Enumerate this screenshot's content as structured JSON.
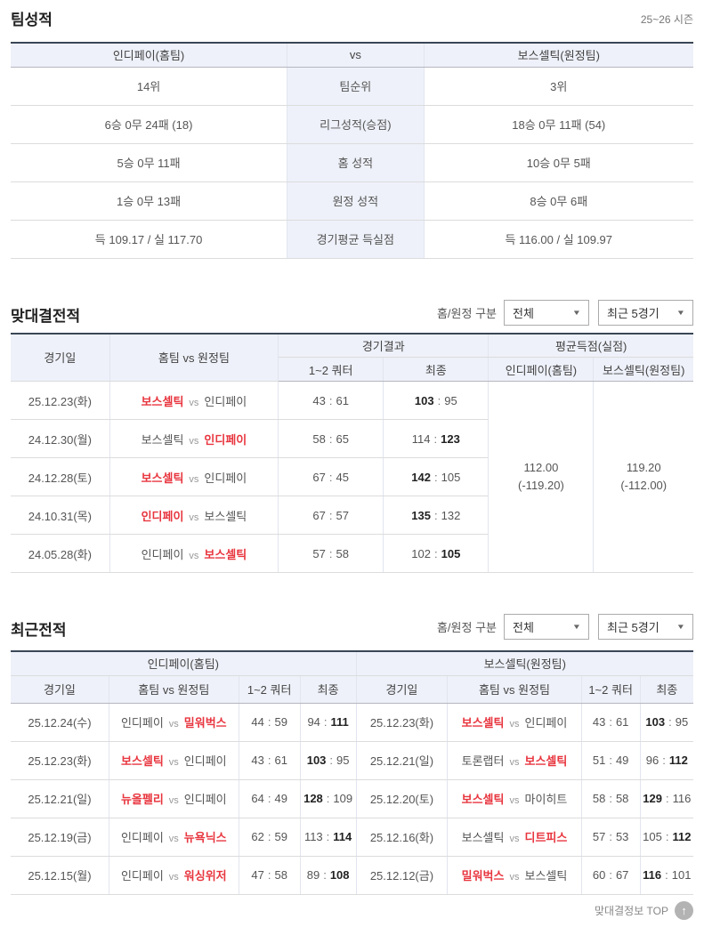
{
  "shared": {
    "vs_label": "vs",
    "score_sep": ":",
    "filter_label": "홈/원정 구분",
    "venue_filter_value": "전체",
    "recent_filter_value": "최근 5경기",
    "accent_red": "#e8363f",
    "header_bg": "#eef1f9",
    "table_top_border": "#3a4656"
  },
  "team_stats": {
    "title": "팀성적",
    "season_label": "25~26 시즌",
    "header": {
      "home": "인디페이(홈팀)",
      "vs": "vs",
      "away": "보스셀틱(원정팀)"
    },
    "rows": [
      {
        "home": "14위",
        "label": "팀순위",
        "away": "3위"
      },
      {
        "home": "6승 0무 24패 (18)",
        "label": "리그성적(승점)",
        "away": "18승 0무 11패 (54)"
      },
      {
        "home": "5승 0무 11패",
        "label": "홈 성적",
        "away": "10승 0무 5패"
      },
      {
        "home": "1승 0무 13패",
        "label": "원정 성적",
        "away": "8승 0무 6패"
      },
      {
        "home": "득 109.17 / 실 117.70",
        "label": "경기평균 득실점",
        "away": "득 116.00 / 실 109.97"
      }
    ]
  },
  "head_to_head": {
    "title": "맞대결전적",
    "columns": {
      "date": "경기일",
      "match": "홈팀 vs 원정팀",
      "result_group": "경기결과",
      "quarter": "1~2 쿼터",
      "final": "최종",
      "avg_group": "평균득점(실점)",
      "avg_home": "인디페이(홈팀)",
      "avg_away": "보스셀틱(원정팀)"
    },
    "rows": [
      {
        "date": "25.12.23(화)",
        "home": "보스셀틱",
        "away": "인디페이",
        "win": "home",
        "q": [
          "43",
          "61"
        ],
        "f": [
          "103",
          "95"
        ]
      },
      {
        "date": "24.12.30(월)",
        "home": "보스셀틱",
        "away": "인디페이",
        "win": "away",
        "q": [
          "58",
          "65"
        ],
        "f": [
          "114",
          "123"
        ]
      },
      {
        "date": "24.12.28(토)",
        "home": "보스셀틱",
        "away": "인디페이",
        "win": "home",
        "q": [
          "67",
          "45"
        ],
        "f": [
          "142",
          "105"
        ]
      },
      {
        "date": "24.10.31(목)",
        "home": "인디페이",
        "away": "보스셀틱",
        "win": "home",
        "q": [
          "67",
          "57"
        ],
        "f": [
          "135",
          "132"
        ]
      },
      {
        "date": "24.05.28(화)",
        "home": "인디페이",
        "away": "보스셀틱",
        "win": "away",
        "q": [
          "57",
          "58"
        ],
        "f": [
          "102",
          "105"
        ]
      }
    ],
    "avg": {
      "home": {
        "value": "112.00",
        "sub": "(-119.20)"
      },
      "away": {
        "value": "119.20",
        "sub": "(-112.00)"
      }
    }
  },
  "recent": {
    "title": "최근전적",
    "left_group": "인디페이(홈팀)",
    "right_group": "보스셀틱(원정팀)",
    "columns": {
      "date": "경기일",
      "match": "홈팀 vs 원정팀",
      "quarter": "1~2 쿼터",
      "final": "최종"
    },
    "left_rows": [
      {
        "date": "25.12.24(수)",
        "home": "인디페이",
        "away": "밀워벅스",
        "win": "away",
        "q": [
          "44",
          "59"
        ],
        "f": [
          "94",
          "111"
        ]
      },
      {
        "date": "25.12.23(화)",
        "home": "보스셀틱",
        "away": "인디페이",
        "win": "home",
        "q": [
          "43",
          "61"
        ],
        "f": [
          "103",
          "95"
        ]
      },
      {
        "date": "25.12.21(일)",
        "home": "뉴올펠리",
        "away": "인디페이",
        "win": "home",
        "q": [
          "64",
          "49"
        ],
        "f": [
          "128",
          "109"
        ]
      },
      {
        "date": "25.12.19(금)",
        "home": "인디페이",
        "away": "뉴욕닉스",
        "win": "away",
        "q": [
          "62",
          "59"
        ],
        "f": [
          "113",
          "114"
        ]
      },
      {
        "date": "25.12.15(월)",
        "home": "인디페이",
        "away": "워싱위저",
        "win": "away",
        "q": [
          "47",
          "58"
        ],
        "f": [
          "89",
          "108"
        ]
      }
    ],
    "right_rows": [
      {
        "date": "25.12.23(화)",
        "home": "보스셀틱",
        "away": "인디페이",
        "win": "home",
        "q": [
          "43",
          "61"
        ],
        "f": [
          "103",
          "95"
        ]
      },
      {
        "date": "25.12.21(일)",
        "home": "토론랩터",
        "away": "보스셀틱",
        "win": "away",
        "q": [
          "51",
          "49"
        ],
        "f": [
          "96",
          "112"
        ]
      },
      {
        "date": "25.12.20(토)",
        "home": "보스셀틱",
        "away": "마이히트",
        "win": "home",
        "q": [
          "58",
          "58"
        ],
        "f": [
          "129",
          "116"
        ]
      },
      {
        "date": "25.12.16(화)",
        "home": "보스셀틱",
        "away": "디트피스",
        "win": "away",
        "q": [
          "57",
          "53"
        ],
        "f": [
          "105",
          "112"
        ]
      },
      {
        "date": "25.12.12(금)",
        "home": "밀워벅스",
        "away": "보스셀틱",
        "win": "home",
        "q": [
          "60",
          "67"
        ],
        "f": [
          "116",
          "101"
        ]
      }
    ]
  },
  "footer": {
    "label": "맞대결정보 TOP",
    "top_icon": "up-arrow"
  }
}
